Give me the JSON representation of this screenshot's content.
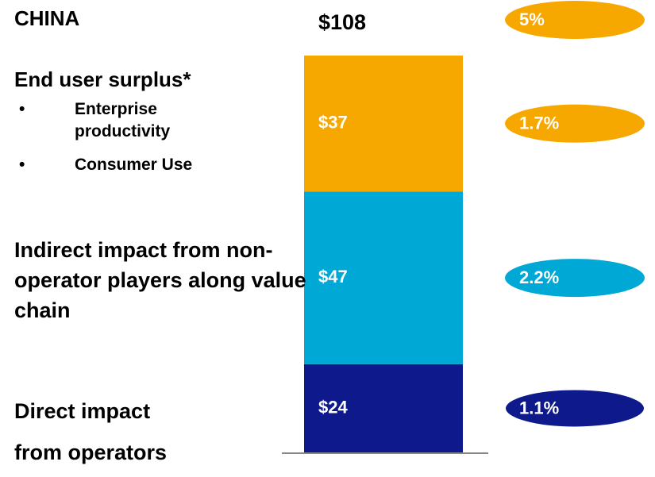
{
  "chart_data": {
    "type": "stacked_bar",
    "title": "CHINA",
    "total": 108,
    "total_label": "$108",
    "total_share": 5,
    "total_share_label": "5%",
    "series": [
      {
        "name": "Direct impact from operators",
        "color": "#0e1a8c",
        "values": [
          24
        ],
        "value_labels": [
          "$24"
        ],
        "shares": [
          1.1
        ],
        "share_labels": [
          "1.1%"
        ]
      },
      {
        "name": "Indirect impact from non-operator players along value chain",
        "color": "#00a8d6",
        "values": [
          47
        ],
        "value_labels": [
          "$47"
        ],
        "shares": [
          2.2
        ],
        "share_labels": [
          "2.2%"
        ]
      },
      {
        "name": "End user surplus*",
        "color": "#f7a800",
        "values": [
          37
        ],
        "value_labels": [
          "$37"
        ],
        "shares": [
          1.7
        ],
        "share_labels": [
          "1.7%"
        ],
        "items": [
          "Enterprise productivity",
          "Consumer Use"
        ]
      }
    ]
  }
}
